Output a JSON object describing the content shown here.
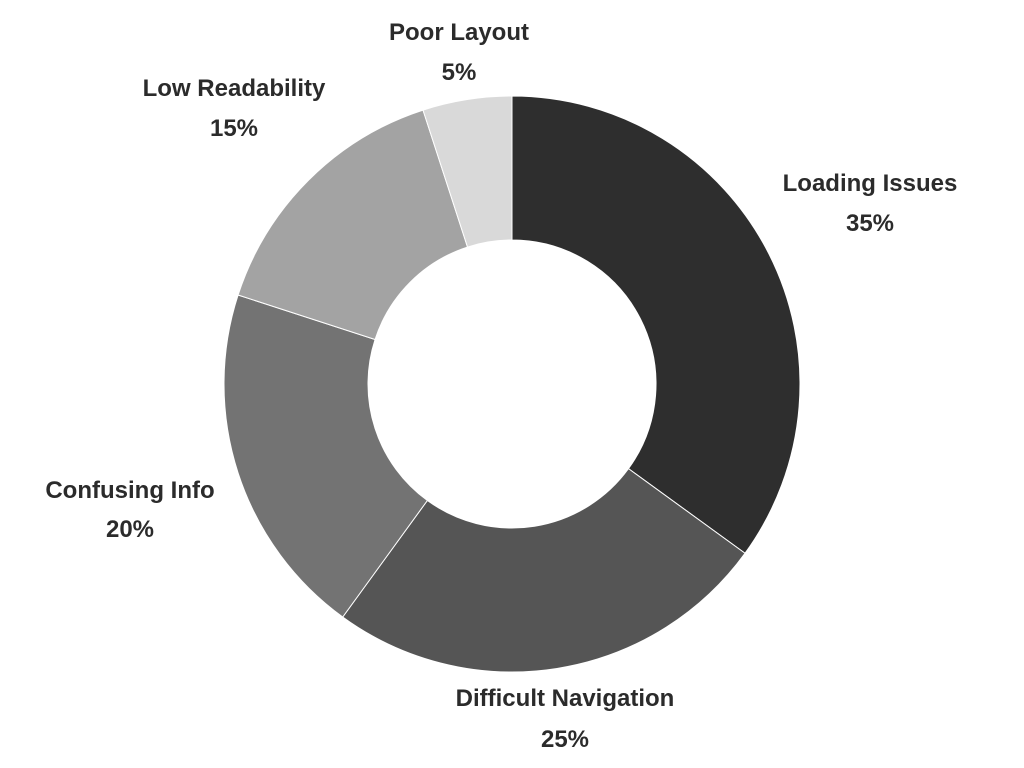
{
  "chart_data": {
    "type": "pie",
    "title": "",
    "hole": true,
    "categories": [
      "Loading Issues",
      "Difficult Navigation",
      "Confusing Info",
      "Low Readability",
      "Poor Layout"
    ],
    "values": [
      35,
      25,
      20,
      15,
      5
    ],
    "value_labels": [
      "35%",
      "25%",
      "20%",
      "15%",
      "5%"
    ],
    "colors": [
      "#2e2e2e",
      "#555555",
      "#737373",
      "#a3a3a3",
      "#d9d9d9"
    ],
    "legend": "none",
    "grid": false
  }
}
